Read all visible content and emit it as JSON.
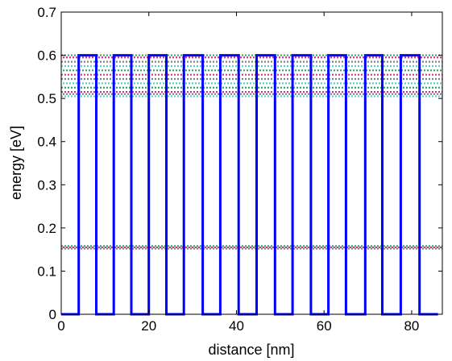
{
  "chart_data": {
    "type": "line",
    "xlabel": "distance [nm]",
    "ylabel": "energy [eV]",
    "xlim": [
      0,
      87
    ],
    "ylim": [
      0,
      0.7
    ],
    "grid": false,
    "legend": "none",
    "x_ticks": [
      0,
      20,
      40,
      60,
      80
    ],
    "x_tick_labels": [
      "0",
      "20",
      "40",
      "60",
      "80"
    ],
    "y_ticks": [
      0,
      0.1,
      0.2,
      0.3,
      0.4,
      0.5,
      0.6,
      0.7
    ],
    "y_tick_labels": [
      "0",
      "0.1",
      "0.2",
      "0.3",
      "0.4",
      "0.5",
      "0.6",
      "0.7"
    ],
    "series": [
      {
        "kind": "potential-profile",
        "color": "#0000ff",
        "x": [
          0,
          4,
          4,
          8,
          8,
          12,
          12,
          16,
          16,
          20,
          20,
          24,
          24,
          28,
          28,
          32.3,
          32.3,
          36.3,
          36.3,
          40.5,
          40.5,
          44.6,
          44.6,
          48.8,
          48.8,
          52.8,
          52.8,
          57,
          57,
          61,
          61,
          65,
          65,
          69.4,
          69.4,
          73.3,
          73.3,
          77.5,
          77.5,
          81.8,
          81.8,
          86
        ],
        "y": [
          0,
          0,
          0.6,
          0.6,
          0,
          0,
          0.6,
          0.6,
          0,
          0,
          0.6,
          0.6,
          0,
          0,
          0.6,
          0.6,
          0,
          0,
          0.6,
          0.6,
          0,
          0,
          0.6,
          0.6,
          0,
          0,
          0.6,
          0.6,
          0,
          0,
          0.6,
          0.6,
          0,
          0,
          0.6,
          0.6,
          0,
          0,
          0.6,
          0.6,
          0,
          0
        ]
      },
      {
        "kind": "energy-levels",
        "x_range": [
          0,
          87
        ],
        "levels": [
          0.152,
          0.155,
          0.158,
          0.505,
          0.51,
          0.515,
          0.525,
          0.535,
          0.545,
          0.555,
          0.565,
          0.575,
          0.585,
          0.595,
          0.6
        ],
        "colors": [
          "#808080",
          "#cc3399",
          "#33aa55",
          "#66cccc"
        ]
      }
    ]
  }
}
